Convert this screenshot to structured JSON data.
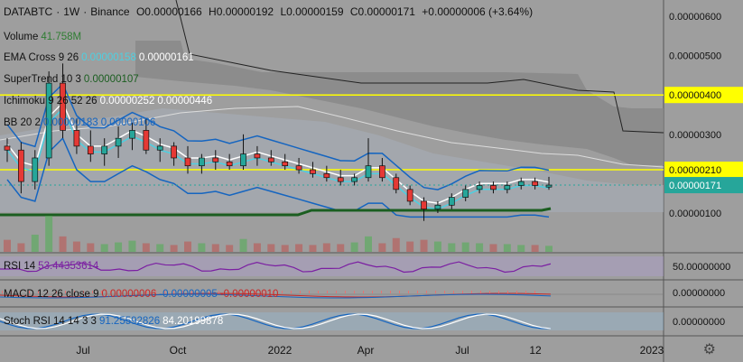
{
  "header": {
    "symbol": "DATABTC",
    "sep1": "·",
    "interval": "1W",
    "sep2": "·",
    "exchange": "Binance",
    "open": "O0.00000166",
    "high": "H0.00000192",
    "low": "L0.00000159",
    "close": "C0.00000171",
    "change": "+0.00000006 (+3.64%)"
  },
  "indicators": {
    "volume": {
      "label": "Volume",
      "value": "41.758M",
      "color": "#2e7d32"
    },
    "ema": {
      "label": "EMA Cross 9 26",
      "v1": "0.00000158",
      "v1_color": "#4dd0e1",
      "v2": "0.00000161",
      "v2_color": "#ffffff"
    },
    "supertrend": {
      "label": "SuperTrend 10 3",
      "value": "0.00000107",
      "color": "#1b5e20"
    },
    "ichimoku": {
      "label": "Ichimoku 9 26 52 26",
      "v1": "0.00000252",
      "v2": "0.00000446",
      "color": "#ffffff"
    },
    "bb": {
      "label": "BB 20 2",
      "v1": "0.00000183",
      "v2": "0.00000106",
      "color": "#1565c0"
    }
  },
  "price_axis": {
    "ticks": [
      "0.00000600",
      "0.00000500",
      "0.00000400",
      "0.00000300",
      "0.00000210",
      "0.00000171",
      "0.00000100"
    ],
    "highlight_yellow": [
      "0.00000400",
      "0.00000210"
    ],
    "current_price": "0.00000171",
    "current_color": "#26a69a"
  },
  "panes": {
    "rsi": {
      "label": "RSI 14",
      "value": "53.44353614",
      "axis": "50.00000000",
      "color": "#7b1fa2"
    },
    "macd": {
      "label": "MACD 12 26 close 9",
      "v1": "0.00000006",
      "v2": "-0.00000005",
      "v3": "-0.00000010",
      "axis": "0.00000000"
    },
    "stoch": {
      "label": "Stoch RSI 14 14 3 3",
      "v1": "91.25592826",
      "v2": "84.20199878",
      "axis": "0.00000000"
    }
  },
  "time_axis": {
    "labels": [
      "Jul",
      "Oct",
      "2022",
      "Apr",
      "Jul",
      "12",
      "2023"
    ]
  },
  "chart_data": {
    "type": "candlestick",
    "symbol": "DATABTC",
    "interval": "1W",
    "price_range": [
      0,
      6.8e-06
    ],
    "horizontal_lines": [
      4e-06,
      2.1e-06
    ],
    "ohlc": [
      [
        2.7,
        2.9,
        2.3,
        2.6
      ],
      [
        2.6,
        2.8,
        1.5,
        1.8
      ],
      [
        1.8,
        2.6,
        1.6,
        2.4
      ],
      [
        2.4,
        4.6,
        2.2,
        4.3
      ],
      [
        4.3,
        4.8,
        2.9,
        3.1
      ],
      [
        3.1,
        3.4,
        2.5,
        2.7
      ],
      [
        2.7,
        3.1,
        2.3,
        2.5
      ],
      [
        2.5,
        2.9,
        2.2,
        2.7
      ],
      [
        2.7,
        3.2,
        2.4,
        2.9
      ],
      [
        2.9,
        3.3,
        2.6,
        3.1
      ],
      [
        3.1,
        3.4,
        2.5,
        2.6
      ],
      [
        2.6,
        2.9,
        2.3,
        2.7
      ],
      [
        2.7,
        2.8,
        2.2,
        2.4
      ],
      [
        2.4,
        2.7,
        2.0,
        2.2
      ],
      [
        2.2,
        2.5,
        2.0,
        2.4
      ],
      [
        2.4,
        2.6,
        2.1,
        2.3
      ],
      [
        2.3,
        2.5,
        2.1,
        2.2
      ],
      [
        2.2,
        3.0,
        2.1,
        2.5
      ],
      [
        2.5,
        2.7,
        2.2,
        2.4
      ],
      [
        2.4,
        2.6,
        2.2,
        2.3
      ],
      [
        2.3,
        2.5,
        2.1,
        2.2
      ],
      [
        2.2,
        2.4,
        2.0,
        2.1
      ],
      [
        2.1,
        2.3,
        1.9,
        2.0
      ],
      [
        2.0,
        2.2,
        1.8,
        1.9
      ],
      [
        1.9,
        2.1,
        1.7,
        1.8
      ],
      [
        1.8,
        2.0,
        1.7,
        1.9
      ],
      [
        1.9,
        2.9,
        1.8,
        2.2
      ],
      [
        2.2,
        2.4,
        1.8,
        1.9
      ],
      [
        1.9,
        2.0,
        1.5,
        1.6
      ],
      [
        1.6,
        1.7,
        1.2,
        1.3
      ],
      [
        1.3,
        1.4,
        0.8,
        1.1
      ],
      [
        1.1,
        1.3,
        1.0,
        1.2
      ],
      [
        1.2,
        1.5,
        1.1,
        1.4
      ],
      [
        1.4,
        1.7,
        1.3,
        1.6
      ],
      [
        1.6,
        1.8,
        1.5,
        1.7
      ],
      [
        1.7,
        1.8,
        1.5,
        1.6
      ],
      [
        1.6,
        1.8,
        1.5,
        1.7
      ],
      [
        1.7,
        1.9,
        1.6,
        1.8
      ],
      [
        1.8,
        1.9,
        1.6,
        1.7
      ],
      [
        1.66,
        1.92,
        1.59,
        1.71
      ]
    ],
    "volume": [
      14,
      10,
      20,
      42,
      18,
      12,
      10,
      9,
      11,
      13,
      10,
      9,
      8,
      12,
      10,
      9,
      8,
      15,
      10,
      9,
      8,
      9,
      8,
      10,
      9,
      11,
      18,
      10,
      16,
      12,
      14,
      12,
      10,
      11,
      10,
      9,
      9,
      8,
      8,
      7
    ]
  }
}
